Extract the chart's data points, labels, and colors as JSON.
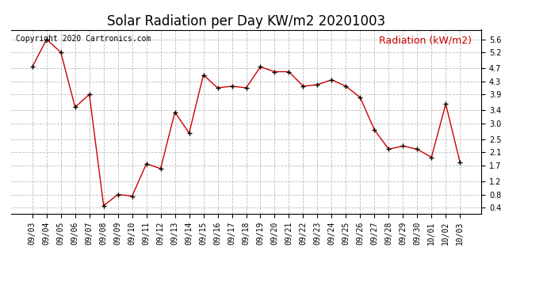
{
  "title": "Solar Radiation per Day KW/m2 20201003",
  "copyright_text": "Copyright 2020 Cartronics.com",
  "legend_label": "Radiation (kW/m2)",
  "dates": [
    "09/03",
    "09/04",
    "09/05",
    "09/06",
    "09/07",
    "09/08",
    "09/09",
    "09/10",
    "09/11",
    "09/12",
    "09/13",
    "09/14",
    "09/15",
    "09/16",
    "09/17",
    "09/18",
    "09/19",
    "09/20",
    "09/21",
    "09/22",
    "09/23",
    "09/24",
    "09/25",
    "09/26",
    "09/27",
    "09/28",
    "09/29",
    "09/30",
    "10/01",
    "10/02",
    "10/03"
  ],
  "values": [
    4.75,
    5.6,
    5.2,
    3.5,
    3.9,
    0.45,
    0.8,
    0.75,
    1.75,
    1.6,
    3.35,
    2.7,
    4.5,
    4.1,
    4.15,
    4.1,
    4.75,
    4.6,
    4.6,
    4.15,
    4.2,
    4.35,
    4.15,
    3.8,
    2.8,
    2.2,
    2.3,
    2.2,
    1.95,
    3.6,
    1.8
  ],
  "line_color": "#cc0000",
  "marker_color": "#000000",
  "background_color": "#ffffff",
  "grid_color": "#bbbbbb",
  "ylim": [
    0.2,
    5.9
  ],
  "yticks": [
    0.4,
    0.8,
    1.2,
    1.7,
    2.1,
    2.5,
    3.0,
    3.4,
    3.9,
    4.3,
    4.7,
    5.2,
    5.6
  ],
  "title_fontsize": 12,
  "copyright_fontsize": 7,
  "legend_fontsize": 9,
  "tick_fontsize": 7
}
